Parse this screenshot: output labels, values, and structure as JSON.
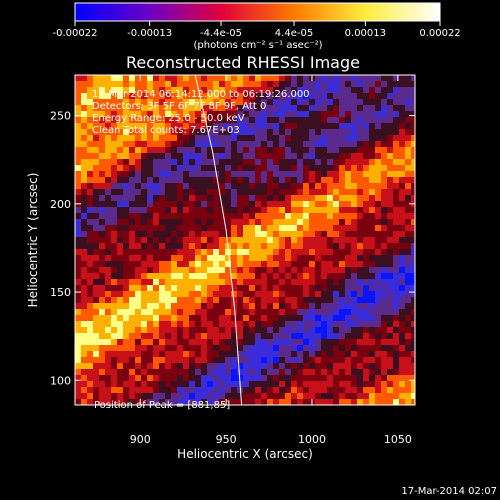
{
  "chart_data": {
    "type": "heatmap",
    "title": "Reconstructed RHESSI Image",
    "xlabel": "Heliocentric X (arcsec)",
    "ylabel": "Heliocentric Y (arcsec)",
    "xlim": [
      862,
      1060
    ],
    "ylim": [
      86,
      273
    ],
    "x_ticks": [
      900,
      950,
      1000,
      1050
    ],
    "y_ticks": [
      100,
      150,
      200,
      250
    ],
    "colorbar": {
      "unit_label": "(photons cm⁻² s⁻¹ asec⁻²)",
      "min": -0.00022,
      "max": 0.00022,
      "tick_values": [
        -0.00022,
        -0.00013,
        -4.4e-05,
        4.4e-05,
        0.00013,
        0.00022
      ],
      "tick_labels": [
        "-0.00022",
        "-0.00013",
        "-4.4e-05",
        "4.4e-05",
        "0.00013",
        "0.00022"
      ],
      "colors": [
        "#0000ff",
        "#6a00c8",
        "#e0003c",
        "#ff7a00",
        "#ffee40",
        "#ffffff"
      ]
    },
    "annotations": [
      "17-Mar-2014 06:14:12.000 to 06:19:26.000",
      "Detectors: 3F 5F 6F 7F 8F 9F, Att 0",
      "Energy Range: 25.0 - 50.0 keV",
      "Clean     Total counts: 7.67E+03"
    ],
    "peak_label": "Position of Peak = [881,85]",
    "peak": [
      881,
      85
    ],
    "limb_curve": [
      [
        932,
        273
      ],
      [
        942,
        230
      ],
      [
        950,
        185
      ],
      [
        955,
        140
      ],
      [
        959,
        86
      ]
    ]
  },
  "footer": {
    "timestamp": "17-Mar-2014 02:07"
  }
}
